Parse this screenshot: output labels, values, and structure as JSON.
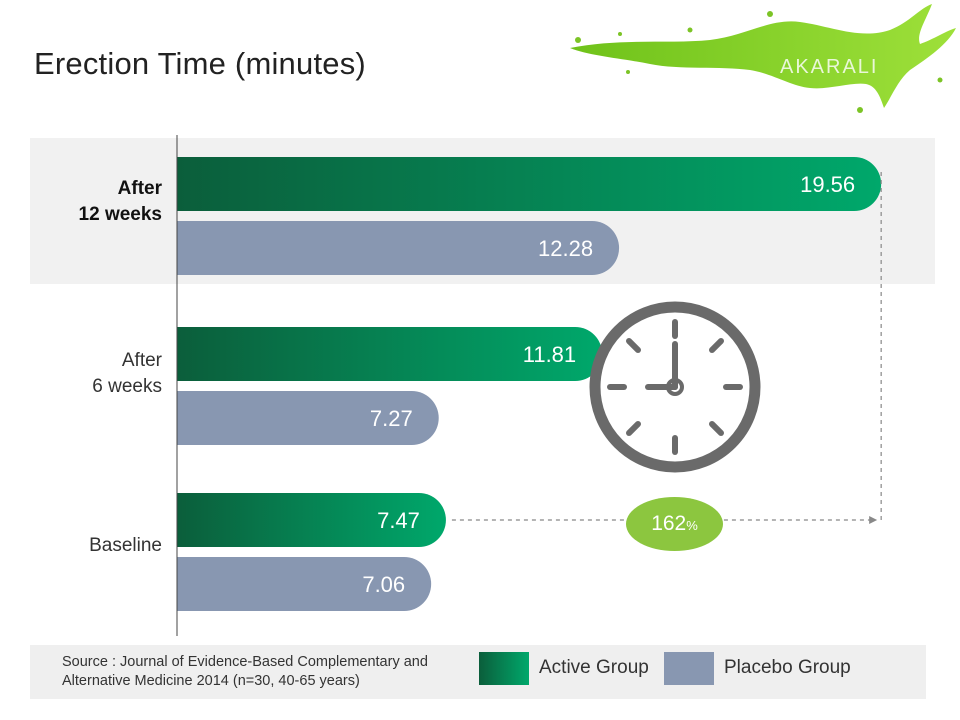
{
  "title": "Erection Time (minutes)",
  "logo_text": "AKARALI",
  "colors": {
    "active": "#03905a",
    "active_dark": "#0b5e3b",
    "placebo": "#8897b1",
    "highlight": "#8cc63f",
    "band": "#f1f1f1"
  },
  "chart_data": {
    "type": "bar",
    "orientation": "horizontal",
    "title": "Erection Time (minutes)",
    "categories": [
      "After\n12 weeks",
      "After\n6 weeks",
      "Baseline"
    ],
    "series": [
      {
        "name": "Active Group",
        "values": [
          19.56,
          11.81,
          7.47
        ]
      },
      {
        "name": "Placebo Group",
        "values": [
          12.28,
          7.27,
          7.06
        ]
      }
    ],
    "value_labels": [
      [
        "19.56",
        "11.81",
        "7.47"
      ],
      [
        "12.28",
        "7.27",
        "7.06"
      ]
    ],
    "highlight_category": "After\n12 weeks",
    "annotation": {
      "value": "162",
      "unit": "%"
    },
    "xlim": [
      0,
      20
    ],
    "grid": false,
    "legend_position": "bottom"
  },
  "legend": {
    "active": "Active Group",
    "placebo": "Placebo Group"
  },
  "source": "Source : Journal of Evidence-Based Complementary and Alternative Medicine 2014 (n=30, 40-65 years)",
  "icon": "clock-icon"
}
